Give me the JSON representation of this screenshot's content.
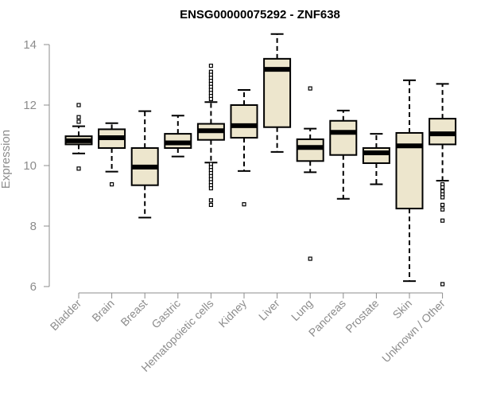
{
  "chart_data": {
    "type": "box",
    "title": "ENSG00000075292 - ZNF638",
    "ylabel": "Expression",
    "xlabel": "",
    "ylim": [
      6,
      14.4
    ],
    "yticks": [
      6,
      8,
      10,
      12,
      14
    ],
    "grid": false,
    "colors": {
      "box_fill": "#ede6cd",
      "stroke": "#000000",
      "axis": "#8c8c8c"
    },
    "categories": [
      "Bladder",
      "Brain",
      "Breast",
      "Gastric",
      "Hematopoietic cells",
      "Kidney",
      "Liver",
      "Lung",
      "Pancreas",
      "Prostate",
      "Skin",
      "Unknown / Other"
    ],
    "boxes": [
      {
        "min": 10.4,
        "q1": 10.7,
        "median": 10.82,
        "q3": 10.97,
        "max": 11.3,
        "outliers": [
          12.0,
          11.6,
          11.45,
          9.9
        ]
      },
      {
        "min": 9.8,
        "q1": 10.58,
        "median": 10.92,
        "q3": 11.2,
        "max": 11.4,
        "outliers": [
          9.38
        ]
      },
      {
        "min": 8.28,
        "q1": 9.35,
        "median": 9.95,
        "q3": 10.58,
        "max": 11.8,
        "outliers": []
      },
      {
        "min": 10.3,
        "q1": 10.58,
        "median": 10.75,
        "q3": 11.05,
        "max": 11.65,
        "outliers": []
      },
      {
        "min": 10.1,
        "q1": 10.85,
        "median": 11.15,
        "q3": 11.38,
        "max": 12.1,
        "outliers": [
          13.3,
          13.1,
          13.0,
          12.9,
          12.8,
          12.7,
          12.6,
          12.5,
          12.4,
          12.3,
          12.2,
          10.05,
          9.95,
          9.85,
          9.75,
          9.65,
          9.55,
          9.45,
          9.35,
          9.25,
          8.85,
          8.7
        ]
      },
      {
        "min": 9.82,
        "q1": 10.92,
        "median": 11.32,
        "q3": 12.0,
        "max": 12.5,
        "outliers": [
          8.72
        ]
      },
      {
        "min": 10.45,
        "q1": 11.27,
        "median": 13.18,
        "q3": 13.53,
        "max": 14.35,
        "outliers": []
      },
      {
        "min": 9.78,
        "q1": 10.15,
        "median": 10.6,
        "q3": 10.87,
        "max": 11.22,
        "outliers": [
          12.55,
          6.92
        ]
      },
      {
        "min": 8.9,
        "q1": 10.35,
        "median": 11.1,
        "q3": 11.48,
        "max": 11.82,
        "outliers": []
      },
      {
        "min": 9.38,
        "q1": 10.08,
        "median": 10.42,
        "q3": 10.58,
        "max": 11.05,
        "outliers": []
      },
      {
        "min": 6.18,
        "q1": 8.58,
        "median": 10.65,
        "q3": 11.08,
        "max": 12.82,
        "outliers": []
      },
      {
        "min": 9.5,
        "q1": 10.7,
        "median": 11.05,
        "q3": 11.55,
        "max": 12.7,
        "outliers": [
          9.38,
          9.28,
          9.15,
          9.05,
          8.95,
          8.7,
          8.55,
          8.18,
          6.08
        ]
      }
    ]
  }
}
